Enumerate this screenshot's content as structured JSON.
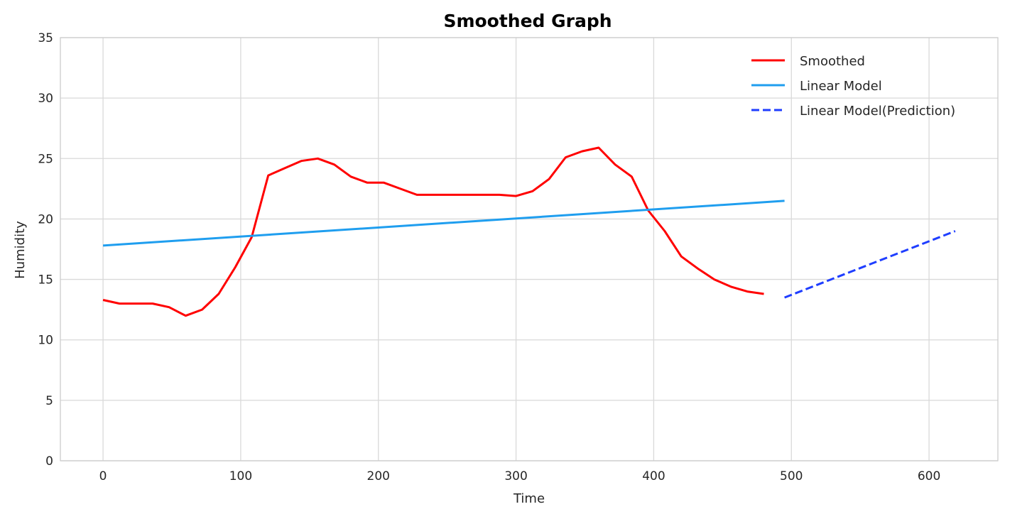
{
  "chart_data": {
    "type": "line",
    "title": "Smoothed Graph",
    "xlabel": "Time",
    "ylabel": "Humidity",
    "xlim": [
      -31,
      650
    ],
    "ylim": [
      0,
      35
    ],
    "xticks": [
      0,
      100,
      200,
      300,
      400,
      500,
      600
    ],
    "yticks": [
      0,
      5,
      10,
      15,
      20,
      25,
      30,
      35
    ],
    "grid": true,
    "legend_position": "top-right",
    "series": [
      {
        "name": "Smoothed",
        "color": "#ff0000",
        "style": "solid",
        "x": [
          0,
          12,
          24,
          36,
          48,
          60,
          72,
          84,
          96,
          108,
          120,
          132,
          144,
          156,
          168,
          180,
          192,
          204,
          216,
          228,
          240,
          252,
          264,
          276,
          288,
          300,
          312,
          324,
          336,
          348,
          360,
          372,
          384,
          396,
          408,
          420,
          432,
          444,
          456,
          468,
          480
        ],
        "y": [
          13.3,
          13.0,
          13.0,
          13.0,
          12.7,
          12.0,
          12.5,
          13.8,
          16.0,
          18.5,
          23.6,
          24.2,
          24.8,
          25.0,
          24.5,
          23.5,
          23.0,
          23.0,
          22.5,
          22.0,
          22.0,
          22.0,
          22.0,
          22.0,
          22.0,
          21.9,
          22.3,
          23.3,
          25.1,
          25.6,
          25.9,
          24.5,
          23.5,
          20.7,
          19.0,
          16.9,
          15.9,
          15.0,
          14.4,
          14.0,
          13.8
        ]
      },
      {
        "name": "Linear Model",
        "color": "#1f9eef",
        "style": "solid",
        "x": [
          0,
          495
        ],
        "y": [
          17.8,
          21.5
        ]
      },
      {
        "name": "Linear Model(Prediction)",
        "color": "#1f3eff",
        "style": "dashed",
        "x": [
          495,
          619
        ],
        "y": [
          13.5,
          19.0
        ]
      }
    ]
  }
}
